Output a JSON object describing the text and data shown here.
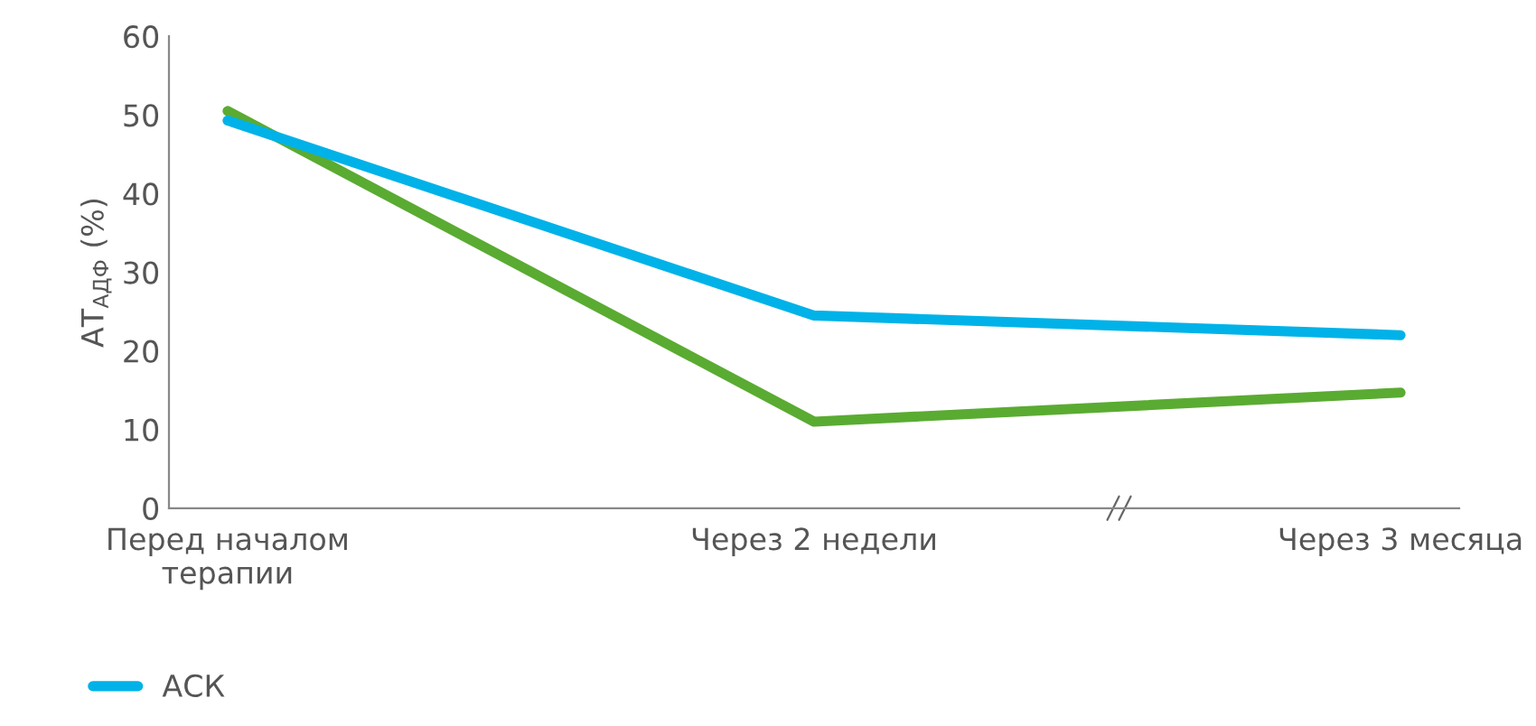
{
  "chart_data": {
    "type": "line",
    "ylabel": "AT$_{АДФ}$ (%)",
    "categories": [
      "Перед началом\nтерапии",
      "Через 2 недели",
      "Через 3 месяца"
    ],
    "series": [
      {
        "color": "#5aab32",
        "values": [
          50.5,
          11,
          14.7
        ]
      },
      {
        "name": "АСК",
        "color": "#00b2e8",
        "values": [
          49.3,
          24.5,
          22
        ]
      }
    ],
    "ylim": [
      0,
      60
    ],
    "yticks": [
      0,
      10,
      20,
      30,
      40,
      50,
      60
    ],
    "grid": false,
    "legend": "bottom left",
    "marker": "none",
    "line_style": "solid"
  }
}
